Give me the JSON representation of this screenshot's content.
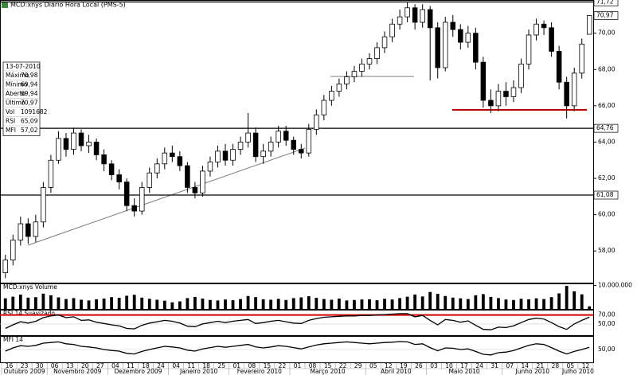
{
  "chart_data": {
    "type": "candlestick",
    "title": "MCD:xnys Diário Hora Local (PMS-5)",
    "categories": [
      "16",
      null,
      "23",
      null,
      "30",
      null,
      "06",
      null,
      "13",
      null,
      "20",
      null,
      "27",
      null,
      "04",
      null,
      "11",
      null,
      "18",
      null,
      "24",
      null,
      "04",
      null,
      "11",
      null,
      "18",
      null,
      "25",
      null,
      "01",
      null,
      "08",
      null,
      "15",
      null,
      "22",
      null,
      "01",
      null,
      "08",
      null,
      "15",
      null,
      "22",
      null,
      "29",
      null,
      "05",
      null,
      "12",
      null,
      "19",
      null,
      "26",
      null,
      "03",
      null,
      "10",
      null,
      "17",
      null,
      "24",
      null,
      "31",
      null,
      "07",
      null,
      "14",
      null,
      "21",
      null,
      "28",
      null,
      "05",
      null,
      "12",
      null
    ],
    "months": [
      "Outubro 2009",
      "Novembro 2009",
      "Dezembro 2009",
      "Janeiro 2010",
      "Fevereiro 2010",
      "Março 2010",
      "Abril 2010",
      "Maio 2010",
      "Junho 2010",
      "Julho 2010"
    ],
    "ohlc": [
      [
        56.8,
        57.8,
        56.5,
        57.5
      ],
      [
        57.5,
        58.9,
        57.2,
        58.6
      ],
      [
        58.6,
        59.9,
        58.3,
        59.5
      ],
      [
        59.5,
        59.8,
        58.4,
        58.8
      ],
      [
        58.8,
        60.0,
        58.5,
        59.6
      ],
      [
        59.6,
        61.8,
        59.3,
        61.5
      ],
      [
        61.5,
        63.3,
        61.2,
        63.0
      ],
      [
        63.0,
        64.6,
        62.8,
        64.2
      ],
      [
        64.2,
        64.5,
        63.2,
        63.6
      ],
      [
        63.6,
        64.8,
        63.3,
        64.5
      ],
      [
        64.5,
        64.7,
        63.5,
        63.8
      ],
      [
        63.8,
        64.4,
        63.4,
        64.0
      ],
      [
        64.0,
        64.2,
        63.0,
        63.3
      ],
      [
        63.3,
        63.6,
        62.4,
        62.8
      ],
      [
        62.8,
        63.0,
        61.9,
        62.2
      ],
      [
        62.2,
        62.5,
        61.4,
        61.8
      ],
      [
        61.8,
        62.0,
        60.2,
        60.5
      ],
      [
        60.5,
        60.9,
        59.9,
        60.2
      ],
      [
        60.2,
        61.8,
        60.0,
        61.5
      ],
      [
        61.5,
        62.6,
        61.2,
        62.3
      ],
      [
        62.3,
        63.1,
        62.0,
        62.8
      ],
      [
        62.8,
        63.7,
        62.5,
        63.4
      ],
      [
        63.4,
        63.8,
        62.9,
        63.2
      ],
      [
        63.2,
        63.5,
        62.4,
        62.7
      ],
      [
        62.7,
        62.9,
        61.2,
        61.5
      ],
      [
        61.5,
        61.8,
        60.9,
        61.2
      ],
      [
        61.2,
        62.7,
        61.0,
        62.4
      ],
      [
        62.4,
        63.2,
        62.1,
        62.9
      ],
      [
        62.9,
        63.8,
        62.6,
        63.5
      ],
      [
        63.5,
        63.9,
        62.7,
        63.0
      ],
      [
        63.0,
        63.9,
        62.7,
        63.6
      ],
      [
        63.6,
        64.3,
        63.3,
        64.0
      ],
      [
        64.0,
        65.6,
        63.7,
        64.5
      ],
      [
        64.5,
        64.8,
        62.9,
        63.2
      ],
      [
        63.2,
        63.9,
        62.8,
        63.5
      ],
      [
        63.5,
        64.3,
        63.2,
        64.0
      ],
      [
        64.0,
        64.9,
        63.7,
        64.6
      ],
      [
        64.6,
        64.9,
        63.8,
        64.1
      ],
      [
        64.1,
        64.3,
        63.3,
        63.6
      ],
      [
        63.6,
        63.9,
        63.1,
        63.4
      ],
      [
        63.4,
        65.0,
        63.2,
        64.7
      ],
      [
        64.7,
        65.8,
        64.4,
        65.5
      ],
      [
        65.5,
        66.6,
        65.2,
        66.3
      ],
      [
        66.3,
        67.1,
        66.0,
        66.8
      ],
      [
        66.8,
        67.5,
        66.5,
        67.2
      ],
      [
        67.2,
        67.9,
        66.9,
        67.6
      ],
      [
        67.6,
        68.2,
        67.3,
        67.9
      ],
      [
        67.9,
        68.6,
        67.6,
        68.3
      ],
      [
        68.3,
        68.9,
        68.0,
        68.6
      ],
      [
        68.6,
        69.5,
        68.3,
        69.2
      ],
      [
        69.2,
        70.1,
        68.9,
        69.8
      ],
      [
        69.8,
        70.8,
        69.5,
        70.5
      ],
      [
        70.5,
        71.3,
        70.2,
        70.9
      ],
      [
        70.9,
        71.72,
        70.6,
        71.4
      ],
      [
        71.4,
        71.6,
        70.2,
        70.6
      ],
      [
        70.6,
        71.6,
        70.3,
        71.3
      ],
      [
        71.3,
        71.5,
        67.4,
        70.3
      ],
      [
        70.3,
        70.6,
        67.5,
        68.1
      ],
      [
        68.1,
        70.9,
        67.9,
        70.6
      ],
      [
        70.6,
        71.0,
        69.8,
        70.2
      ],
      [
        70.2,
        70.5,
        69.1,
        69.5
      ],
      [
        69.5,
        70.4,
        69.2,
        70.0
      ],
      [
        70.0,
        70.3,
        68.0,
        68.4
      ],
      [
        68.4,
        68.7,
        65.9,
        66.3
      ],
      [
        66.3,
        66.9,
        65.6,
        66.0
      ],
      [
        66.0,
        67.2,
        65.7,
        66.8
      ],
      [
        66.8,
        67.3,
        66.0,
        66.5
      ],
      [
        66.5,
        67.4,
        66.2,
        67.0
      ],
      [
        67.0,
        68.6,
        66.7,
        68.3
      ],
      [
        68.3,
        70.2,
        68.0,
        69.9
      ],
      [
        69.9,
        70.8,
        69.6,
        70.5
      ],
      [
        70.5,
        70.7,
        69.9,
        70.3
      ],
      [
        70.3,
        70.6,
        68.7,
        69.0
      ],
      [
        69.0,
        69.3,
        66.9,
        67.3
      ],
      [
        67.3,
        67.6,
        65.3,
        66.0
      ],
      [
        66.0,
        68.1,
        65.7,
        67.8
      ],
      [
        67.8,
        69.7,
        67.5,
        69.4
      ],
      [
        69.94,
        70.98,
        69.94,
        70.97
      ]
    ],
    "color": "#000000",
    "ylim": [
      56.3,
      71.74
    ],
    "yticks": [
      {
        "value": 58,
        "label": "58,00"
      },
      {
        "value": 60,
        "label": "60,00"
      },
      {
        "value": 62,
        "label": "62,00"
      },
      {
        "value": 64,
        "label": "64,00"
      },
      {
        "value": 66,
        "label": "66,00"
      },
      {
        "value": 68,
        "label": "68,00"
      },
      {
        "value": 70,
        "label": "70,00"
      }
    ],
    "levels": [
      {
        "value": 71.72,
        "label": "71,72",
        "line": true
      },
      {
        "value": 70.97,
        "label": "70,97",
        "line": false
      },
      {
        "value": 64.76,
        "label": "64,76",
        "line": true
      },
      {
        "value": 61.08,
        "label": "61,08",
        "line": true
      }
    ],
    "info": {
      "title": "13-07-2010",
      "rows": [
        [
          "Máximo",
          "70,98"
        ],
        [
          "Mínimo",
          "69,94"
        ],
        [
          "Aberto",
          "69,94"
        ],
        [
          "Último",
          "70,97"
        ],
        [
          "Vol",
          "1091682"
        ],
        [
          "RSI",
          "65,09"
        ],
        [
          "MFI",
          "57,02"
        ]
      ]
    },
    "volume": {
      "title": "MCD:xnys Volume",
      "color": "#000000",
      "ylim": [
        0,
        10500000
      ],
      "yticks": [
        {
          "value": 10000000,
          "label": "10.000.000"
        }
      ],
      "values": [
        4500000,
        5200000,
        6100000,
        4800000,
        5000000,
        6500000,
        5800000,
        4900000,
        4200000,
        4600000,
        3900000,
        3600000,
        4100000,
        4400000,
        5000000,
        4700000,
        5600000,
        6000000,
        4800000,
        4300000,
        3900000,
        3500000,
        2800000,
        3200000,
        4600000,
        5100000,
        4400000,
        3800000,
        3600000,
        4000000,
        3700000,
        4200000,
        5500000,
        5000000,
        4100000,
        3900000,
        4300000,
        3800000,
        4600000,
        4900000,
        5400000,
        4700000,
        4200000,
        3900000,
        4400000,
        3600000,
        3800000,
        4000000,
        4100000,
        3700000,
        4300000,
        4000000,
        4600000,
        5200000,
        6100000,
        5300000,
        7200000,
        6400000,
        5500000,
        4800000,
        4500000,
        4200000,
        5800000,
        6300000,
        5100000,
        4600000,
        4000000,
        3800000,
        4300000,
        4100000,
        4500000,
        4200000,
        5000000,
        6600000,
        9800000,
        7500000,
        6200000,
        1091682
      ]
    },
    "rsi": {
      "title": "RSI 14 Suavizado",
      "color": "#000000",
      "level_color": "#d00000",
      "ylim": [
        25,
        80
      ],
      "yticks": [
        {
          "value": 70,
          "label": "70,00"
        },
        {
          "value": 50,
          "label": "50,00"
        }
      ],
      "values": [
        40,
        48,
        55,
        52,
        56,
        64,
        68,
        70,
        64,
        66,
        58,
        59,
        54,
        51,
        48,
        46,
        40,
        39,
        47,
        52,
        55,
        58,
        56,
        52,
        45,
        44,
        50,
        53,
        56,
        53,
        56,
        58,
        60,
        51,
        53,
        56,
        58,
        55,
        52,
        51,
        58,
        62,
        65,
        66,
        67,
        68,
        68,
        69,
        69,
        70,
        71,
        72,
        73,
        73,
        66,
        69,
        58,
        48,
        60,
        58,
        54,
        57,
        47,
        38,
        37,
        43,
        42,
        46,
        53,
        60,
        63,
        61,
        53,
        44,
        38,
        50,
        58,
        65.09
      ]
    },
    "mfi": {
      "title": "MFI 14",
      "color": "#000000",
      "ylim": [
        10,
        90
      ],
      "yticks": [
        {
          "value": 50,
          "label": "50,00"
        }
      ],
      "values": [
        45,
        55,
        62,
        60,
        63,
        70,
        72,
        74,
        68,
        66,
        60,
        58,
        55,
        50,
        47,
        45,
        38,
        36,
        44,
        50,
        55,
        60,
        58,
        55,
        48,
        45,
        52,
        56,
        60,
        57,
        60,
        63,
        66,
        58,
        55,
        58,
        62,
        60,
        56,
        52,
        58,
        64,
        68,
        70,
        72,
        74,
        72,
        70,
        68,
        70,
        72,
        73,
        75,
        74,
        66,
        68,
        56,
        46,
        55,
        54,
        50,
        52,
        44,
        35,
        33,
        40,
        42,
        47,
        55,
        63,
        68,
        66,
        56,
        45,
        36,
        44,
        50,
        57.02
      ]
    }
  }
}
